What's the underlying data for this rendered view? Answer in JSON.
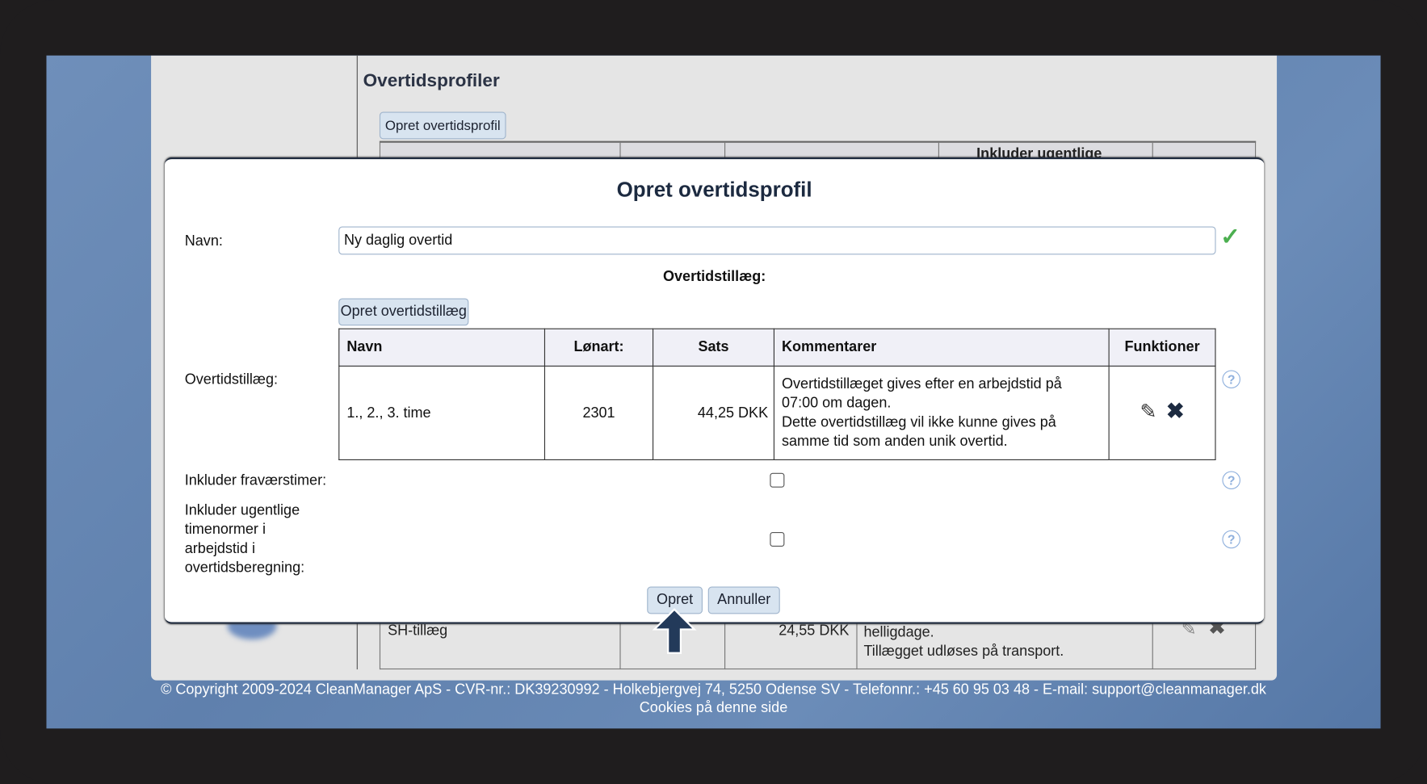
{
  "background_page": {
    "title": "Overtidsprofiler",
    "create_button": "Opret overtidsprofil",
    "header_partial": "Inkluder ugentlige",
    "row": {
      "name": "SH-tillæg",
      "rate": "24,55 DKK",
      "comment_lines": [
        "helligdage.",
        "Tillægget udløses på transport."
      ]
    }
  },
  "modal": {
    "title": "Opret overtidsprofil",
    "name_label": "Navn:",
    "name_value": "Ny daglig overtid",
    "section_title": "Overtidstillæg:",
    "create_supplement_button": "Opret overtidstillæg",
    "supplement_label": "Overtidstillæg:",
    "table": {
      "headers": [
        "Navn",
        "Lønart:",
        "Sats",
        "Kommentarer",
        "Funktioner"
      ],
      "rows": [
        {
          "name": "1., 2., 3. time",
          "wage_type": "2301",
          "rate": "44,25 DKK",
          "comment_lines": [
            "Overtidstillæget gives efter en arbejdstid på",
            "07:00 om dagen.",
            "Dette overtidstillæg vil ikke kunne gives på",
            "samme tid som anden unik overtid."
          ]
        }
      ]
    },
    "include_absence_label": "Inkluder fraværstimer:",
    "include_absence_checked": false,
    "include_weekly_label_lines": [
      "Inkluder ugentlige",
      "timenormer i",
      "arbejdstid i",
      "overtidsberegning:"
    ],
    "include_weekly_checked": false,
    "ok_button": "Opret",
    "cancel_button": "Annuller"
  },
  "footer": {
    "copyright": "© Copyright 2009-2024 CleanManager ApS - CVR-nr.: DK39230992 - Holkebjergvej 74, 5250 Odense SV - Telefonnr.: +45 60 95 03 48 - E-mail: support@cleanmanager.dk",
    "cookies_link": "Cookies på denne side"
  },
  "colors": {
    "accent": "#233a5a",
    "valid": "#4caf50",
    "help": "#8fb0dd"
  }
}
